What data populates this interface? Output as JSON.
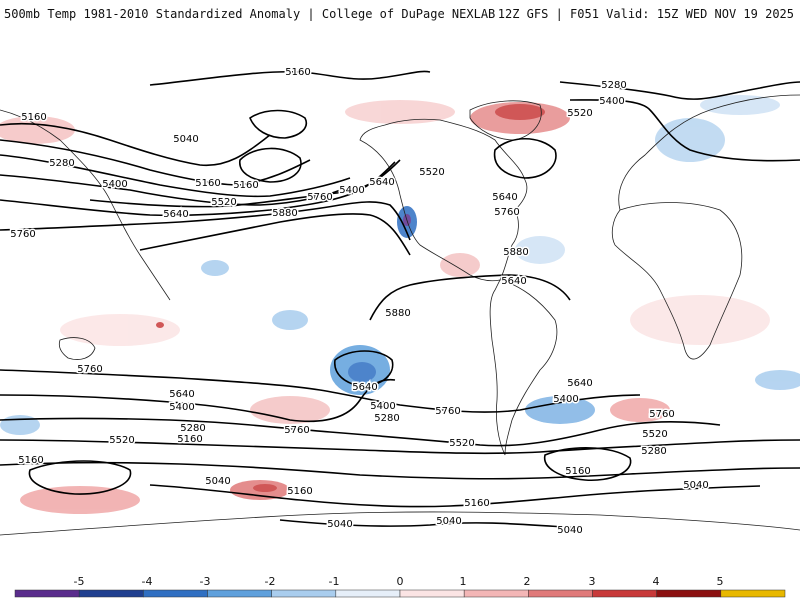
{
  "header": {
    "title_left": "500mb Temp 1981-2010 Standardized Anomaly | College of DuPage NEXLAB",
    "title_right": "12Z GFS | F051 Valid: 15Z WED NOV 19 2025"
  },
  "contour_labels": [
    "5160",
    "5280",
    "5400",
    "5520",
    "5040",
    "5160",
    "5280",
    "5400",
    "5640",
    "5160",
    "5520",
    "5640",
    "5760",
    "5880",
    "5520",
    "5400",
    "5640",
    "5760",
    "5880",
    "5640",
    "5760",
    "5880",
    "5760",
    "5640",
    "5400",
    "5280",
    "5160",
    "5520",
    "5760",
    "5640",
    "5400",
    "5280",
    "5520",
    "5760",
    "5400",
    "5640",
    "5760",
    "5520",
    "5280",
    "5160",
    "5160",
    "5040",
    "5160",
    "5040",
    "5040",
    "5160",
    "5040",
    "5040",
    "5160"
  ],
  "legend": {
    "ticks": [
      "-5",
      "-4",
      "-3",
      "-2",
      "-1",
      "0",
      "1",
      "2",
      "3",
      "4",
      "5"
    ],
    "colors": [
      "#5a2c8c",
      "#1f3f8f",
      "#2f6fc2",
      "#5fa0dc",
      "#a9cdee",
      "#e6eff9",
      "#fbe4e4",
      "#f3b6b6",
      "#e07a7a",
      "#c83a3a",
      "#8b1010",
      "#e8b800"
    ]
  },
  "colors": {
    "ocean": "#ffffff",
    "coastline": "#222222",
    "contour": "#000000",
    "positive_anomaly": "#f2b3b3",
    "negative_anomaly": "#a9cdee"
  }
}
